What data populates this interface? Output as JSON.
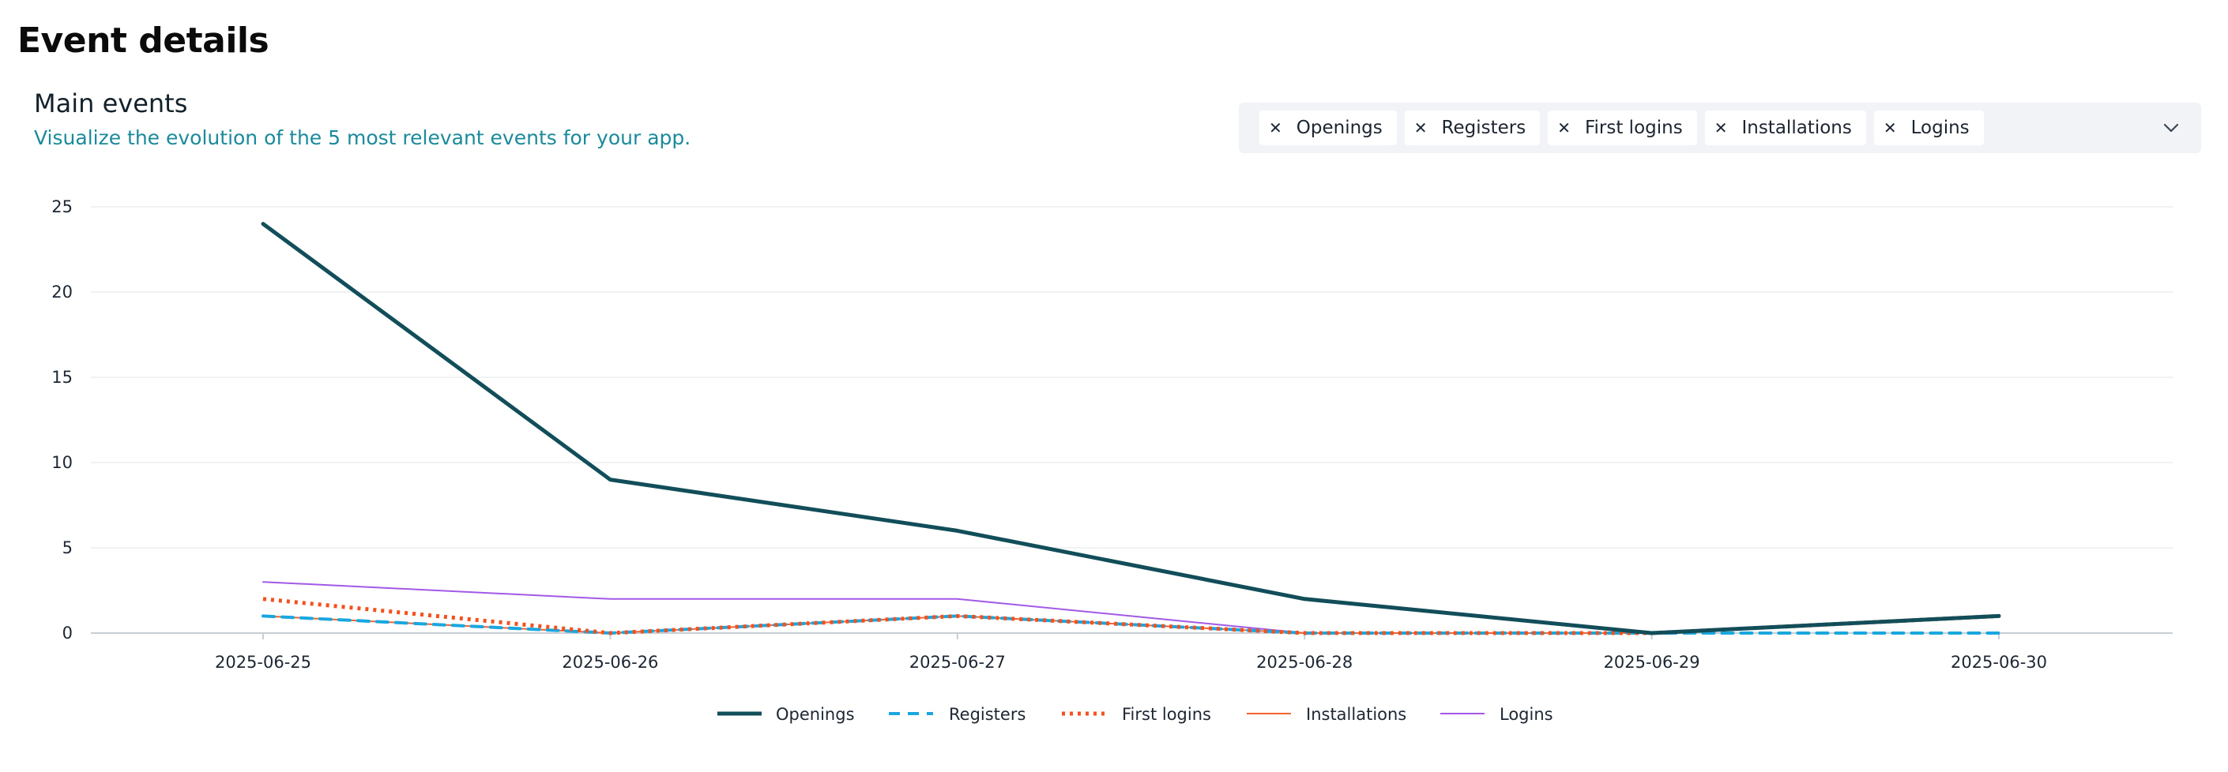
{
  "page": {
    "title": "Event details"
  },
  "section": {
    "title": "Main events",
    "subtitle": "Visualize the evolution of the 5 most relevant events for your app."
  },
  "filter": {
    "chips": [
      {
        "label": "Openings",
        "remove_icon": "close-icon"
      },
      {
        "label": "Registers",
        "remove_icon": "close-icon"
      },
      {
        "label": "First logins",
        "remove_icon": "close-icon"
      },
      {
        "label": "Installations",
        "remove_icon": "close-icon"
      },
      {
        "label": "Logins",
        "remove_icon": "close-icon"
      }
    ],
    "dropdown_icon": "chevron-down-icon"
  },
  "chart_data": {
    "type": "line",
    "title": "",
    "xlabel": "",
    "ylabel": "",
    "categories": [
      "2025-06-25",
      "2025-06-26",
      "2025-06-27",
      "2025-06-28",
      "2025-06-29",
      "2025-06-30"
    ],
    "ylim": [
      0,
      25
    ],
    "yticks": [
      "0",
      "5",
      "10",
      "15",
      "20",
      "25"
    ],
    "grid": true,
    "legend_position": "bottom-center",
    "series": [
      {
        "name": "Logins",
        "values": [
          3,
          2,
          2,
          0,
          0,
          1
        ],
        "color": "#a259e6",
        "style": "solid-thin"
      },
      {
        "name": "Installations",
        "values": [
          1,
          0,
          1,
          0,
          0,
          1
        ],
        "color": "#f4622e",
        "style": "solid-thin"
      },
      {
        "name": "Registers",
        "values": [
          1,
          0,
          1,
          0,
          0,
          0
        ],
        "color": "#1aa7e0",
        "style": "dashed"
      },
      {
        "name": "First logins",
        "values": [
          2,
          0,
          1,
          0,
          0,
          1
        ],
        "color": "#f4511e",
        "style": "dotted"
      },
      {
        "name": "Openings",
        "values": [
          24,
          9,
          6,
          2,
          0,
          1
        ],
        "color": "#124e5a",
        "style": "solid-thick"
      }
    ],
    "legend_order": [
      "Openings",
      "Registers",
      "First logins",
      "Installations",
      "Logins"
    ]
  }
}
